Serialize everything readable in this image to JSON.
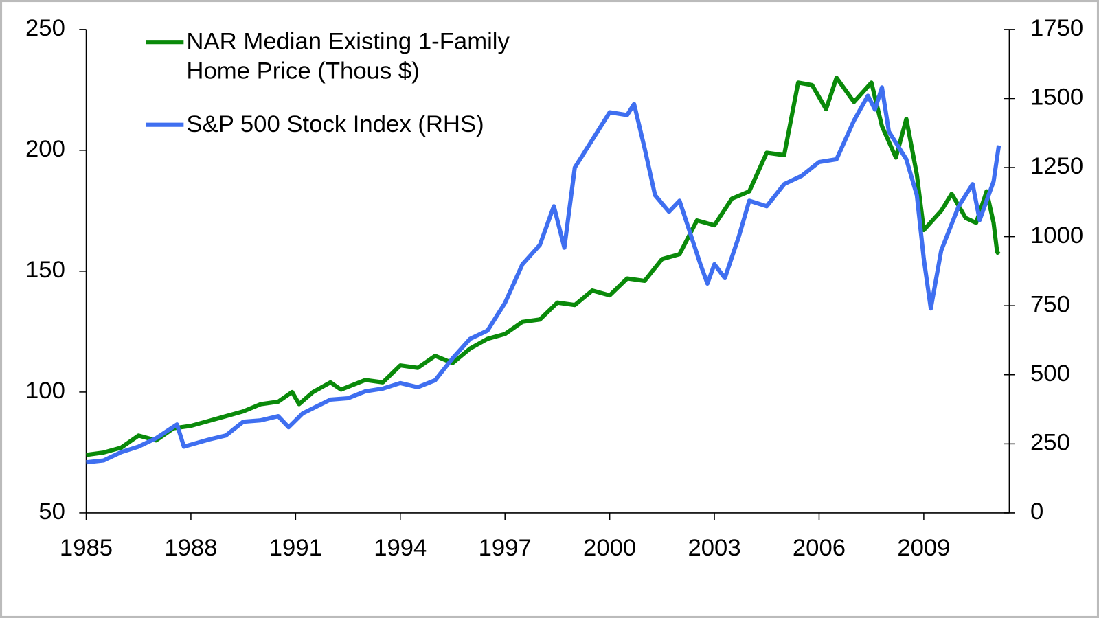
{
  "chart_data": {
    "type": "line",
    "xlim": [
      1985,
      2011.45
    ],
    "xticks": [
      1985,
      1988,
      1991,
      1994,
      1997,
      2000,
      2003,
      2006,
      2009
    ],
    "ylim": [
      50,
      250
    ],
    "yticks": [
      50,
      100,
      150,
      200,
      250
    ],
    "y2lim": [
      0,
      1750
    ],
    "y2ticks": [
      0,
      250,
      500,
      750,
      1000,
      1250,
      1500,
      1750
    ],
    "legend": "upper left",
    "series": [
      {
        "name": "NAR Median Existing 1-Family Home Price (Thous $)",
        "color": "#0a8a0a",
        "x": [
          1985.0,
          1985.5,
          1986.0,
          1986.5,
          1987.0,
          1987.5,
          1988.0,
          1988.5,
          1989.0,
          1989.5,
          1990.0,
          1990.5,
          1990.9,
          1991.1,
          1991.5,
          1992.0,
          1992.3,
          1993.0,
          1993.5,
          1994.0,
          1994.5,
          1995.0,
          1995.5,
          1996.0,
          1996.5,
          1997.0,
          1997.5,
          1998.0,
          1998.5,
          1999.0,
          1999.5,
          2000.0,
          2000.5,
          2001.0,
          2001.5,
          2002.0,
          2002.5,
          2003.0,
          2003.5,
          2004.0,
          2004.5,
          2005.0,
          2005.4,
          2005.8,
          2006.2,
          2006.5,
          2007.0,
          2007.5,
          2007.8,
          2008.2,
          2008.5,
          2008.8,
          2009.0,
          2009.5,
          2009.8,
          2010.2,
          2010.5,
          2010.8,
          2011.0,
          2011.1,
          2011.15
        ],
        "values": [
          74,
          75,
          77,
          82,
          80,
          85,
          86,
          88,
          90,
          92,
          95,
          96,
          100,
          95,
          100,
          104,
          101,
          105,
          104,
          111,
          110,
          115,
          112,
          118,
          122,
          124,
          129,
          130,
          137,
          136,
          142,
          140,
          147,
          146,
          155,
          157,
          171,
          169,
          180,
          183,
          199,
          198,
          228,
          227,
          217,
          230,
          220,
          228,
          210,
          197,
          213,
          190,
          167,
          175,
          182,
          172,
          170,
          183,
          170,
          158,
          157
        ]
      },
      {
        "name": "S&P 500 Stock Index (RHS)",
        "color": "#3f6ff0",
        "axis": "y2",
        "x": [
          1985.0,
          1985.5,
          1986.0,
          1986.5,
          1987.0,
          1987.6,
          1987.8,
          1988.5,
          1989.0,
          1989.5,
          1990.0,
          1990.5,
          1990.8,
          1991.2,
          1991.6,
          1992.0,
          1992.5,
          1993.0,
          1993.5,
          1994.0,
          1994.5,
          1995.0,
          1995.5,
          1996.0,
          1996.5,
          1997.0,
          1997.5,
          1998.0,
          1998.4,
          1998.7,
          1999.0,
          1999.5,
          2000.0,
          2000.5,
          2000.7,
          2001.0,
          2001.3,
          2001.7,
          2002.0,
          2002.6,
          2002.8,
          2003.0,
          2003.3,
          2003.7,
          2004.0,
          2004.5,
          2005.0,
          2005.5,
          2006.0,
          2006.5,
          2007.0,
          2007.4,
          2007.6,
          2007.8,
          2008.0,
          2008.5,
          2008.8,
          2009.0,
          2009.2,
          2009.5,
          2010.0,
          2010.4,
          2010.6,
          2011.0,
          2011.15
        ],
        "values": [
          183,
          190,
          220,
          240,
          270,
          320,
          240,
          265,
          280,
          330,
          335,
          350,
          310,
          360,
          385,
          410,
          415,
          440,
          450,
          470,
          455,
          480,
          560,
          630,
          660,
          760,
          900,
          970,
          1110,
          960,
          1250,
          1350,
          1450,
          1440,
          1480,
          1320,
          1150,
          1090,
          1130,
          900,
          830,
          900,
          850,
          1000,
          1130,
          1110,
          1190,
          1220,
          1270,
          1280,
          1420,
          1510,
          1460,
          1540,
          1380,
          1280,
          1150,
          920,
          740,
          950,
          1110,
          1190,
          1060,
          1200,
          1330
        ]
      }
    ]
  }
}
